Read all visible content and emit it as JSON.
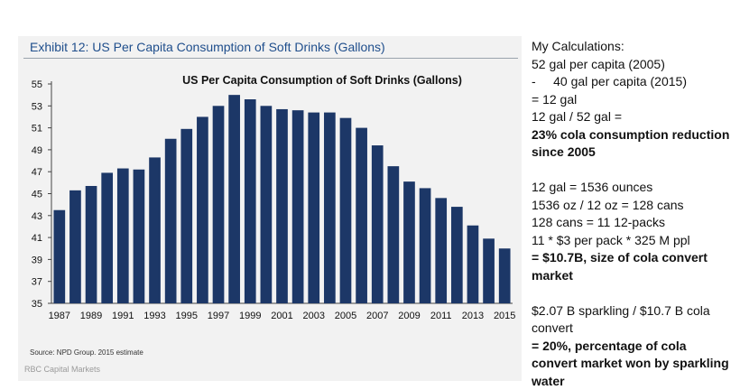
{
  "exhibit": {
    "title": "Exhibit 12: US Per Capita Consumption of Soft Drinks (Gallons)",
    "source": "Source: NPD Group. 2015 estimate",
    "footer": "RBC Capital Markets"
  },
  "chart_data": {
    "type": "bar",
    "title": "US Per Capita Consumption of Soft Drinks (Gallons)",
    "xlabel": "",
    "ylabel": "",
    "ylim": [
      35,
      55
    ],
    "yticks": [
      35,
      37,
      39,
      41,
      43,
      45,
      47,
      49,
      51,
      53,
      55
    ],
    "xtick_labels": [
      "1987",
      "1989",
      "1991",
      "1993",
      "1995",
      "1997",
      "1999",
      "2001",
      "2003",
      "2005",
      "2007",
      "2009",
      "2011",
      "2013",
      "2015"
    ],
    "categories": [
      "1987",
      "1988",
      "1989",
      "1990",
      "1991",
      "1992",
      "1993",
      "1994",
      "1995",
      "1996",
      "1997",
      "1998",
      "1999",
      "2000",
      "2001",
      "2002",
      "2003",
      "2004",
      "2005",
      "2006",
      "2007",
      "2008",
      "2009",
      "2010",
      "2011",
      "2012",
      "2013",
      "2014",
      "2015"
    ],
    "values": [
      43.5,
      45.3,
      45.7,
      46.9,
      47.3,
      47.2,
      48.3,
      50.0,
      50.9,
      52.0,
      53.0,
      54.0,
      53.6,
      53.0,
      52.7,
      52.6,
      52.4,
      52.4,
      51.9,
      51.0,
      49.4,
      47.5,
      46.1,
      45.5,
      44.6,
      43.8,
      42.1,
      40.9,
      40.0
    ],
    "bar_color": "#1c3767",
    "grid": false,
    "legend": "none"
  },
  "calculations": {
    "lines": [
      {
        "text": "My Calculations:",
        "bold": false
      },
      {
        "text": "52 gal per capita (2005)",
        "bold": false
      },
      {
        "text": "-     40 gal per capita (2015)",
        "bold": false
      },
      {
        "text": "= 12 gal",
        "bold": false
      },
      {
        "text": "12 gal / 52 gal =",
        "bold": false
      },
      {
        "text": "23% cola consumption reduction since 2005",
        "bold": true
      },
      {
        "text": "",
        "bold": false
      },
      {
        "text": "12 gal = 1536 ounces",
        "bold": false
      },
      {
        "text": "1536 oz / 12 oz = 128 cans",
        "bold": false
      },
      {
        "text": "128 cans = 11 12-packs",
        "bold": false
      },
      {
        "text": "11 * $3 per pack * 325 M ppl",
        "bold": false
      },
      {
        "text": "= $10.7B, size of cola convert market",
        "bold": true
      },
      {
        "text": "",
        "bold": false
      },
      {
        "text": "$2.07 B sparkling / $10.7 B cola convert",
        "bold": false
      },
      {
        "text": "= 20%, percentage of cola convert market won by sparkling water",
        "bold": true
      }
    ]
  }
}
